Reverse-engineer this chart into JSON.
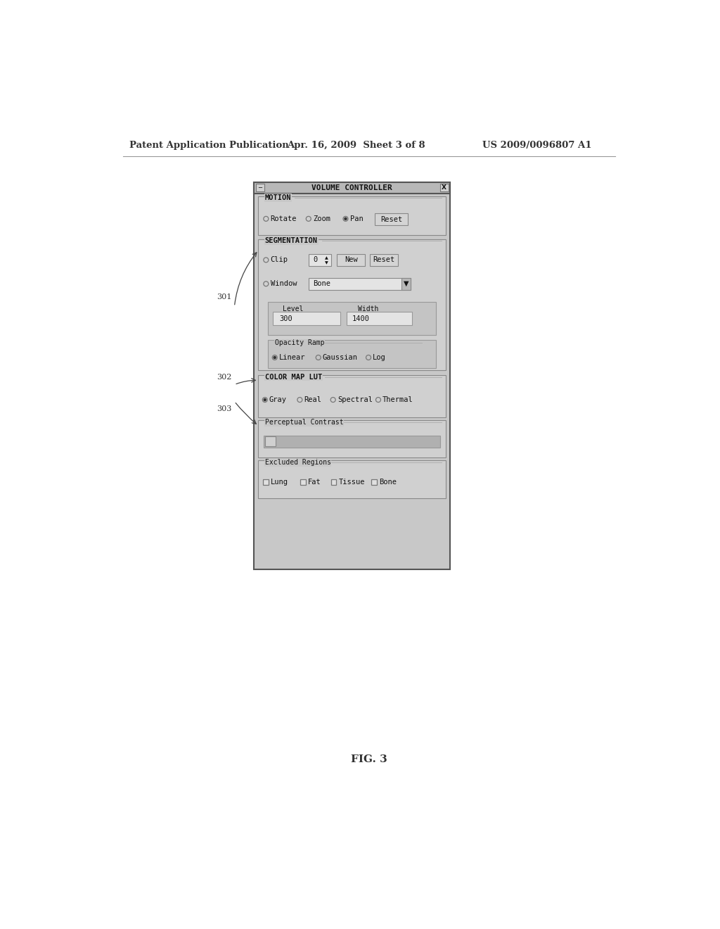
{
  "bg_color": "#ffffff",
  "header_text": "Patent Application Publication",
  "header_date": "Apr. 16, 2009  Sheet 3 of 8",
  "header_patent": "US 2009/0096807 A1",
  "fig_label": "FIG. 3",
  "dialog_color": "#c8c8c8",
  "section_color": "#d0d0d0",
  "subsection_color": "#c4c4c4",
  "input_color": "#e4e4e4",
  "titlebar_color": "#b8b8b8",
  "button_color": "#d4d4d4",
  "slider_color": "#b0b0b0"
}
